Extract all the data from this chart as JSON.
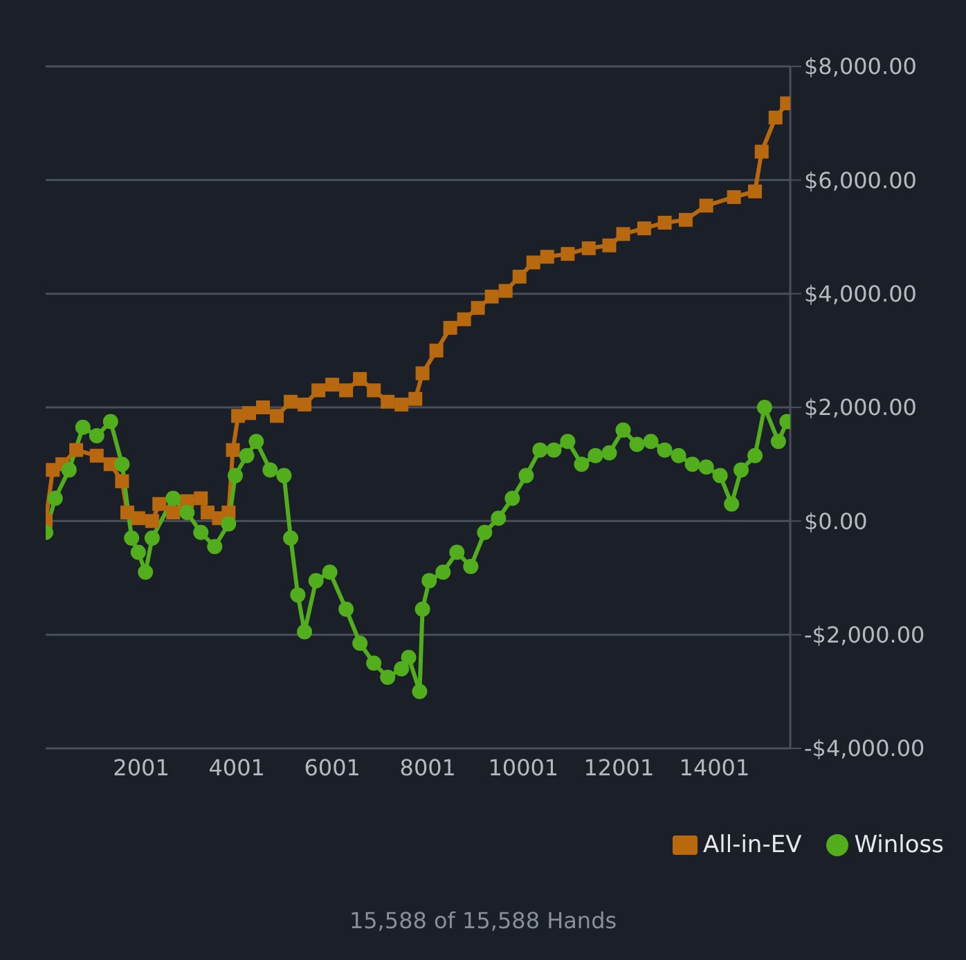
{
  "chart_data": {
    "type": "line",
    "annotations": [
      "15,588 of 15,588 Hands"
    ],
    "xlim": [
      1,
      15588
    ],
    "xticks": [
      2001,
      4001,
      6001,
      8001,
      10001,
      12001,
      14001
    ],
    "ylim": [
      -4000,
      8000
    ],
    "yticks": [
      {
        "value": -4000,
        "label": "-$4,000.00"
      },
      {
        "value": -2000,
        "label": "-$2,000.00"
      },
      {
        "value": 0,
        "label": "$0.00"
      },
      {
        "value": 2000,
        "label": "$2,000.00"
      },
      {
        "value": 4000,
        "label": "$4,000.00"
      },
      {
        "value": 6000,
        "label": "$6,000.00"
      },
      {
        "value": 8000,
        "label": "$8,000.00"
      }
    ],
    "grid": "y",
    "legend": "bottom right",
    "series": [
      {
        "name": "All-in-EV",
        "color": "#b8690f",
        "marker": "square",
        "x": [
          1,
          150,
          350,
          640,
          1070,
          1360,
          1600,
          1710,
          1940,
          2230,
          2380,
          2670,
          2960,
          3250,
          3390,
          3630,
          3830,
          3920,
          4030,
          4260,
          4550,
          4840,
          5130,
          5420,
          5710,
          6000,
          6290,
          6580,
          6870,
          7160,
          7450,
          7740,
          7890,
          8180,
          8470,
          8760,
          9050,
          9340,
          9630,
          9920,
          10210,
          10500,
          10930,
          11370,
          11800,
          12090,
          12530,
          12960,
          13400,
          13830,
          14410,
          14850,
          14990,
          15280,
          15520
        ],
        "values": [
          0,
          900,
          1000,
          1250,
          1150,
          1000,
          700,
          150,
          50,
          0,
          300,
          150,
          350,
          400,
          150,
          50,
          150,
          1250,
          1850,
          1900,
          2000,
          1850,
          2100,
          2050,
          2300,
          2400,
          2300,
          2500,
          2300,
          2100,
          2050,
          2150,
          2600,
          3000,
          3400,
          3550,
          3750,
          3950,
          4050,
          4300,
          4550,
          4650,
          4700,
          4800,
          4850,
          5050,
          5150,
          5250,
          5300,
          5550,
          5700,
          5800,
          6500,
          7100,
          7350
        ]
      },
      {
        "name": "Winloss",
        "color": "#52ae1c",
        "marker": "circle",
        "x": [
          1,
          200,
          490,
          780,
          1070,
          1360,
          1600,
          1800,
          1940,
          2090,
          2230,
          2670,
          2960,
          3250,
          3540,
          3830,
          3970,
          4210,
          4410,
          4700,
          4990,
          5130,
          5280,
          5420,
          5660,
          5950,
          6290,
          6580,
          6870,
          7160,
          7450,
          7600,
          7830,
          7890,
          8030,
          8320,
          8610,
          8900,
          9190,
          9480,
          9770,
          10060,
          10350,
          10640,
          10930,
          11220,
          11510,
          11800,
          12090,
          12380,
          12670,
          12960,
          13250,
          13540,
          13830,
          14120,
          14360,
          14560,
          14850,
          15050,
          15340,
          15520
        ],
        "values": [
          -200,
          400,
          900,
          1650,
          1500,
          1750,
          1000,
          -300,
          -550,
          -900,
          -300,
          400,
          150,
          -200,
          -450,
          -50,
          800,
          1150,
          1400,
          900,
          800,
          -300,
          -1300,
          -1950,
          -1050,
          -900,
          -1550,
          -2150,
          -2500,
          -2750,
          -2600,
          -2400,
          -3000,
          -1550,
          -1050,
          -900,
          -550,
          -800,
          -200,
          50,
          400,
          800,
          1250,
          1250,
          1400,
          1000,
          1150,
          1200,
          1600,
          1350,
          1400,
          1250,
          1150,
          1000,
          950,
          800,
          300,
          900,
          1150,
          2000,
          1400,
          1750
        ]
      }
    ]
  }
}
